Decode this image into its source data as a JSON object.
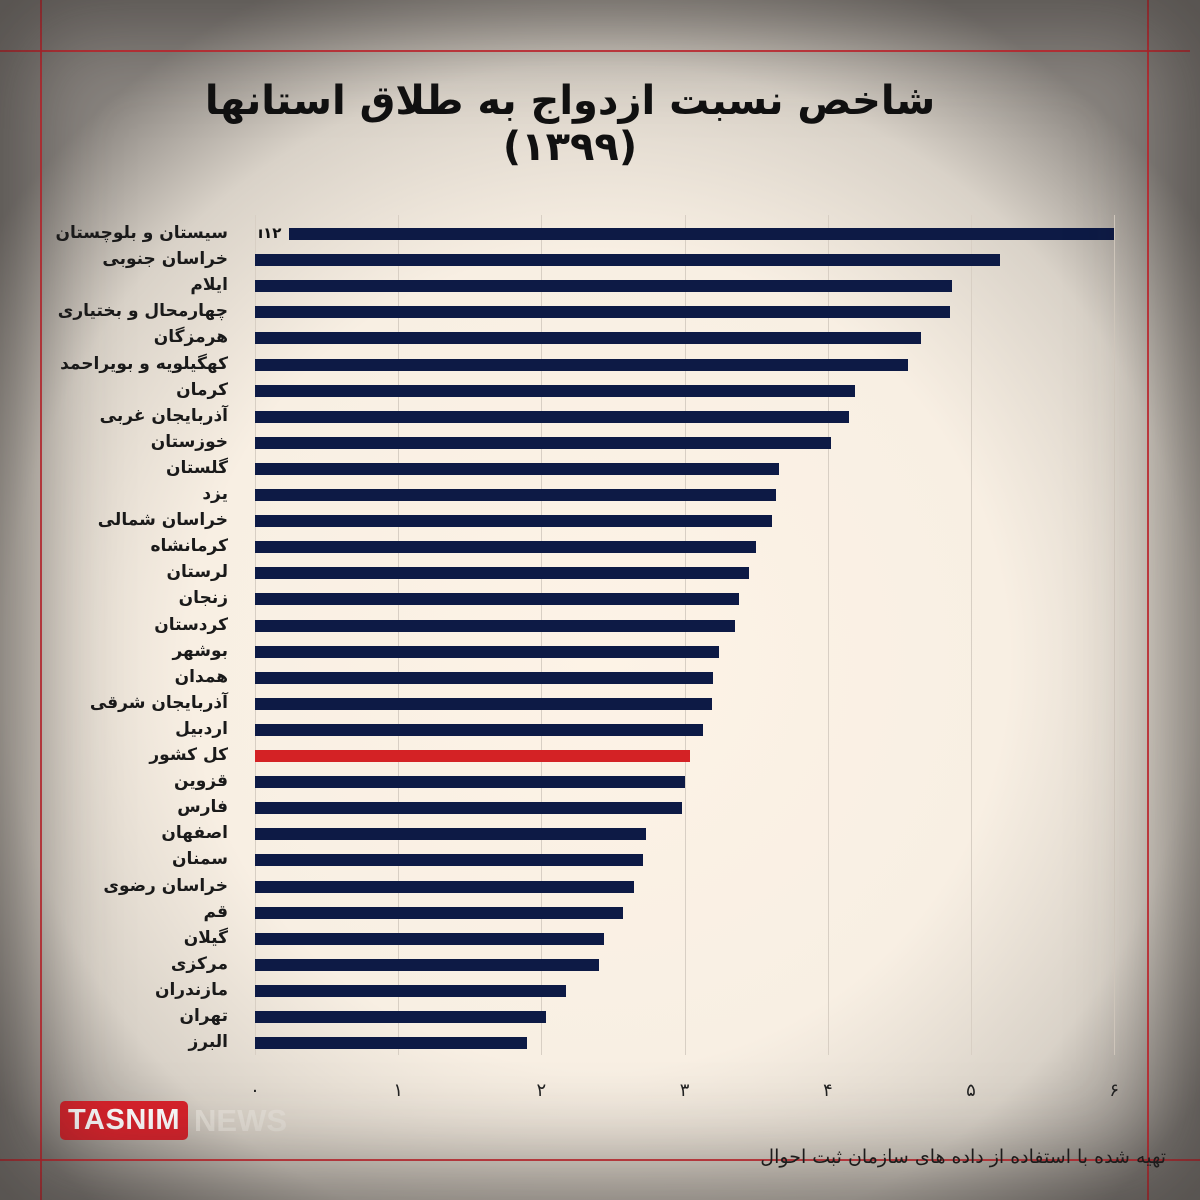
{
  "chart_data": {
    "type": "bar",
    "orientation": "horizontal",
    "title": "شاخص نسبت ازدواج به طلاق استانها (۱۳۹۹)",
    "xlabel": "",
    "ylabel": "",
    "xlim": [
      0,
      6
    ],
    "x_ticks": [
      "۰",
      "۱",
      "۲",
      "۳",
      "۴",
      "۵",
      "۶"
    ],
    "x_tick_values": [
      0,
      1,
      2,
      3,
      4,
      5,
      6
    ],
    "grid": true,
    "legend": null,
    "categories": [
      "سیستان و بلوچستان",
      "خراسان جنوبی",
      "ایلام",
      "چهارمحال و بختیاری",
      "هرمزگان",
      "کهگیلویه و بویراحمد",
      "کرمان",
      "آذربایجان غربی",
      "خوزستان",
      "گلستان",
      "یزد",
      "خراسان شمالی",
      "کرمانشاه",
      "لرستان",
      "زنجان",
      "کردستان",
      "بوشهر",
      "همدان",
      "آذربایجان شرقی",
      "اردبیل",
      "کل کشور",
      "قزوین",
      "فارس",
      "اصفهان",
      "سمنان",
      "خراسان رضوی",
      "قم",
      "گیلان",
      "مرکزی",
      "مازندران",
      "تهران",
      "البرز"
    ],
    "values": [
      12,
      5.2,
      4.87,
      4.85,
      4.65,
      4.56,
      4.19,
      4.15,
      4.02,
      3.66,
      3.64,
      3.61,
      3.5,
      3.45,
      3.38,
      3.35,
      3.24,
      3.2,
      3.19,
      3.13,
      3.04,
      3.0,
      2.98,
      2.73,
      2.71,
      2.65,
      2.57,
      2.44,
      2.4,
      2.17,
      2.03,
      1.9
    ],
    "highlighted_category": "کل کشور",
    "annotations": [
      {
        "category": "سیستان و بلوچستان",
        "text": "۱۲",
        "note": "bar truncated at axis max"
      }
    ],
    "colors": {
      "bar": "#0d1a45",
      "highlight": "#d42225"
    }
  },
  "header": {
    "title": "شاخص نسبت ازدواج به طلاق استانها (۱۳۹۹)"
  },
  "footer": {
    "logo_primary": "TASNIM",
    "logo_secondary": "NEWS",
    "source": "تهیه شده با استفاده از داده های سازمان ثبت احوال"
  },
  "colors": {
    "frame_lines": "#d8222b",
    "logo_red": "#d8222b",
    "background": "#fdf3e6"
  }
}
